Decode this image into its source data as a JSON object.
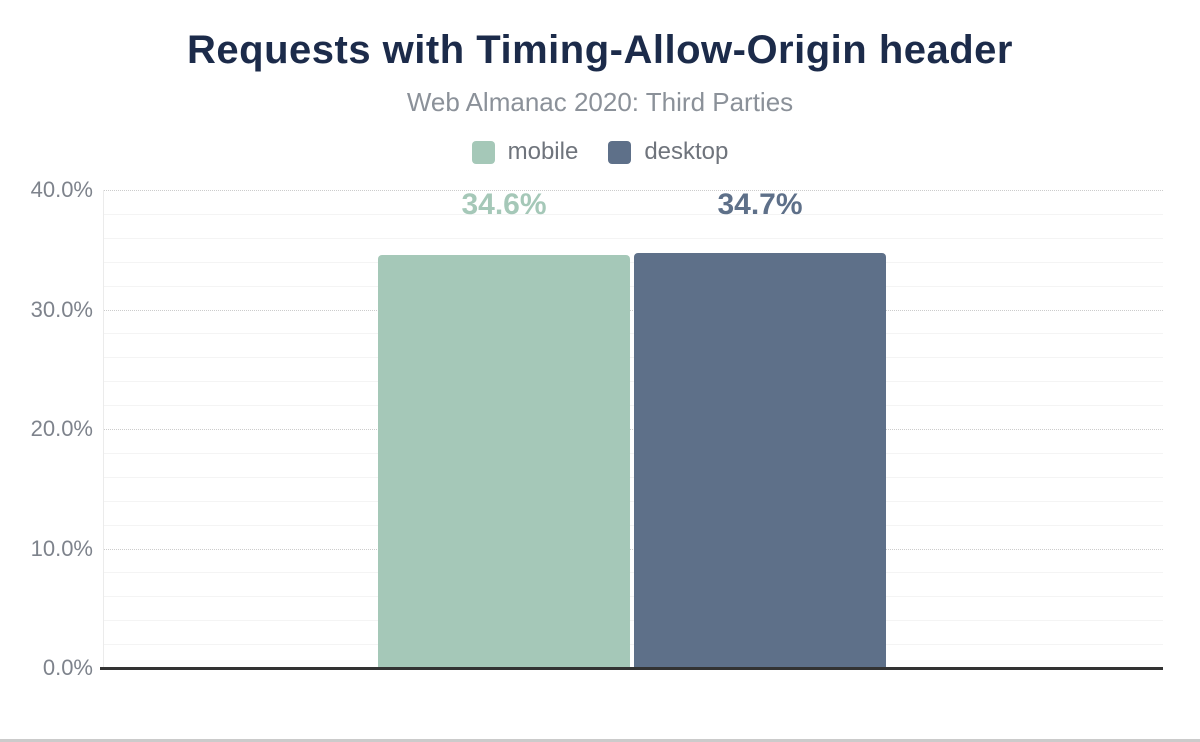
{
  "chart_data": {
    "type": "bar",
    "title": "Requests with Timing-Allow-Origin header",
    "subtitle": "Web Almanac 2020: Third Parties",
    "legend_position": "top-center",
    "grid": "horizontal major gridlines dotted every 10%, minor solid gridlines every 2%",
    "ylim": [
      0,
      40
    ],
    "ylabel": "",
    "xlabel": "",
    "yticks": [
      {
        "value": 0,
        "label": "0.0%"
      },
      {
        "value": 10,
        "label": "10.0%"
      },
      {
        "value": 20,
        "label": "20.0%"
      },
      {
        "value": 30,
        "label": "30.0%"
      },
      {
        "value": 40,
        "label": "40.0%"
      }
    ],
    "series": [
      {
        "name": "mobile",
        "value": 34.6,
        "data_label": "34.6%",
        "color": "#a5c8b8"
      },
      {
        "name": "desktop",
        "value": 34.7,
        "data_label": "34.7%",
        "color": "#5e7089"
      }
    ]
  },
  "colors": {
    "title_text": "#1c2b4a",
    "subtitle_text": "#8b9199",
    "legend_text": "#6f747c",
    "tick_text": "#7e838c",
    "axis_line": "#333333",
    "major_gridline": "#cccccc",
    "minor_gridline": "#f4f4f4",
    "bottom_border": "#cbcbcb",
    "background": "#ffffff"
  }
}
